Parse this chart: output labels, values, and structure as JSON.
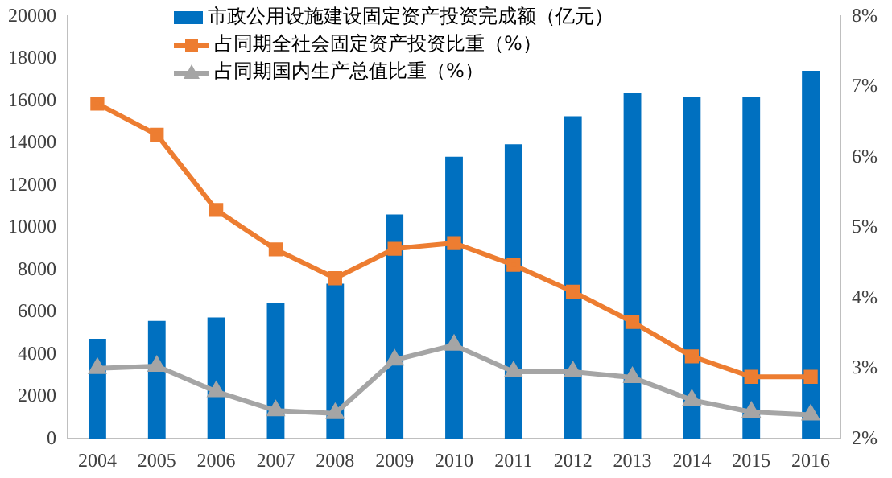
{
  "chart_data": {
    "type": "bar",
    "categories": [
      "2004",
      "2005",
      "2006",
      "2007",
      "2008",
      "2009",
      "2010",
      "2011",
      "2012",
      "2013",
      "2014",
      "2015",
      "2016"
    ],
    "series": [
      {
        "name": "市政公用设施建设固定资产投资完成额（亿元）",
        "color": "#0070c0",
        "values": [
          4730,
          5580,
          5740,
          6430,
          7340,
          10620,
          13360,
          13950,
          15270,
          16360,
          16200,
          16200,
          17420
        ]
      },
      {
        "name": "占同期全社会固定资产投资比重（%）",
        "type": "line",
        "axis": "y2",
        "marker": "square",
        "color": "#ed7d31",
        "values": [
          6.76,
          6.32,
          5.25,
          4.69,
          4.28,
          4.7,
          4.78,
          4.47,
          4.09,
          3.66,
          3.17,
          2.88,
          2.88
        ]
      },
      {
        "name": "占同期国内生产总值比重（%）",
        "type": "line",
        "axis": "y2",
        "marker": "triangle",
        "color": "#a5a5a5",
        "values": [
          3.0,
          3.03,
          2.67,
          2.4,
          2.36,
          3.12,
          3.33,
          2.95,
          2.95,
          2.87,
          2.55,
          2.38,
          2.34
        ]
      }
    ],
    "ylim": [
      0,
      20000
    ],
    "yticks": [
      0,
      2000,
      4000,
      6000,
      8000,
      10000,
      12000,
      14000,
      16000,
      18000,
      20000
    ],
    "y2lim": [
      2,
      8
    ],
    "y2ticks": [
      {
        "value": 2,
        "label": "2%"
      },
      {
        "value": 3,
        "label": "3%"
      },
      {
        "value": 4,
        "label": "4%"
      },
      {
        "value": 5,
        "label": "5%"
      },
      {
        "value": 6,
        "label": "6%"
      },
      {
        "value": 7,
        "label": "7%"
      },
      {
        "value": 8,
        "label": "8%"
      }
    ],
    "grid": false,
    "legend": "top"
  }
}
